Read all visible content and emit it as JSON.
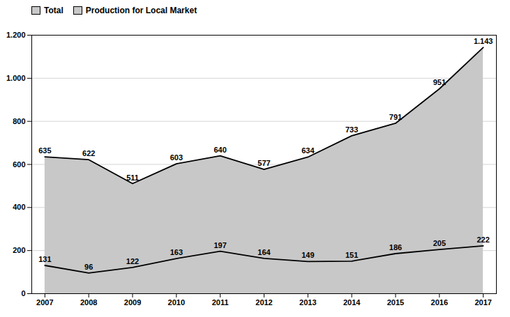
{
  "chart_data": {
    "type": "area",
    "x": [
      2007,
      2008,
      2009,
      2010,
      2011,
      2012,
      2013,
      2014,
      2015,
      2016,
      2017
    ],
    "xlim": [
      2006.7,
      2017.3
    ],
    "xticks": [
      2007,
      2008,
      2009,
      2010,
      2011,
      2012,
      2013,
      2014,
      2015,
      2016,
      2017
    ],
    "ylim": [
      0,
      1200
    ],
    "yticks": [
      0,
      200,
      400,
      600,
      800,
      {
        "value": 1000,
        "label": "1.000"
      },
      {
        "value": 1200,
        "label": "1.200"
      }
    ],
    "grid": true,
    "legend": "upper left",
    "data_labels": true,
    "color": "#000000",
    "series": [
      {
        "name": "Total",
        "type": "area",
        "color": "#c8c8c8",
        "values": [
          635,
          622,
          511,
          603,
          640,
          577,
          634,
          733,
          791,
          951,
          1143
        ],
        "value_labels": [
          "635",
          "622",
          "511",
          "603",
          "640",
          "577",
          "634",
          "733",
          "791",
          "951",
          "1.143"
        ]
      },
      {
        "name": "Production for Local Market",
        "type": "line",
        "color": "#c8c8c8",
        "values": [
          131,
          96,
          122,
          163,
          197,
          164,
          149,
          151,
          186,
          205,
          222
        ]
      }
    ]
  }
}
